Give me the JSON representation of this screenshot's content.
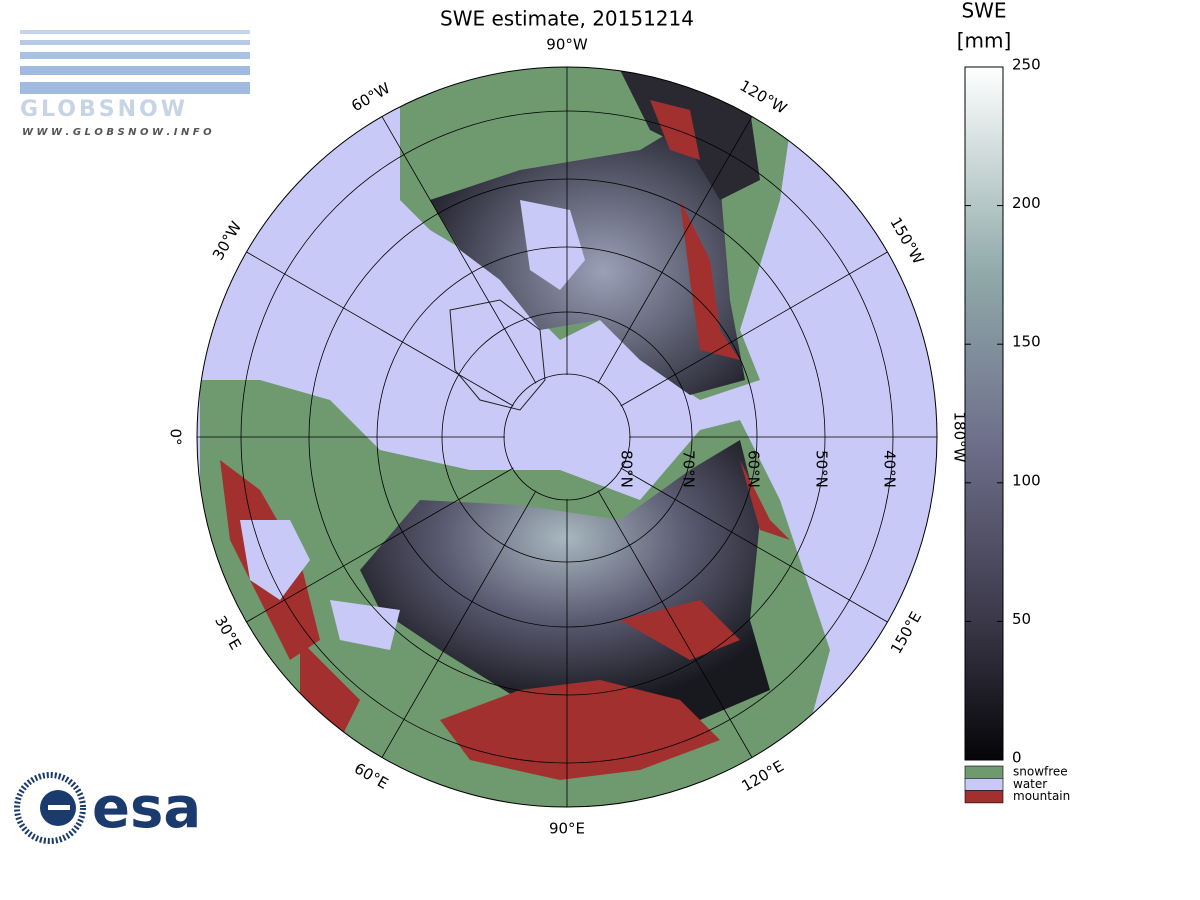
{
  "title": "SWE estimate, 20151214",
  "longitude_labels": [
    "90°W",
    "120°W",
    "150°W",
    "180°W",
    "150°E",
    "120°E",
    "90°E",
    "60°E",
    "30°E",
    "0°",
    "30°W",
    "60°W"
  ],
  "latitude_labels": [
    "80°N",
    "70°N",
    "60°N",
    "50°N",
    "40°N"
  ],
  "colorbar": {
    "label": [
      "SWE",
      "[mm]"
    ],
    "lim": [
      0,
      250
    ],
    "ticks": [
      0,
      50,
      100,
      150,
      200,
      250
    ]
  },
  "legend": [
    {
      "label": "snowfree",
      "color": "#6f9a6f"
    },
    {
      "label": "water",
      "color": "#c9c9f7"
    },
    {
      "label": "mountain",
      "color": "#a2302f"
    }
  ],
  "logos": {
    "globsnow": "GLOBSNOW",
    "url": "W W W . G L O B S N O W . I N F O",
    "esa": "esa"
  }
}
